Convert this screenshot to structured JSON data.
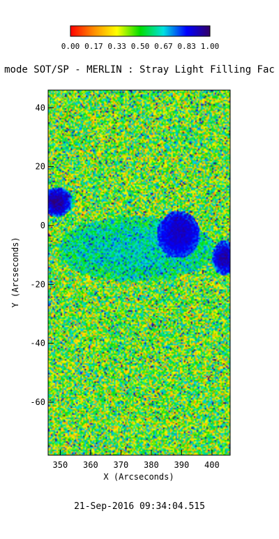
{
  "chart_data": {
    "type": "heatmap",
    "title": "mode SOT/SP - MERLIN : Stray Light Filling Fac",
    "xlabel": "X (Arcseconds)",
    "ylabel": "Y (Arcseconds)",
    "x_ticks": [
      "350",
      "360",
      "370",
      "380",
      "390",
      "400"
    ],
    "y_ticks": [
      "40",
      "20",
      "0",
      "-20",
      "-40",
      "-60"
    ],
    "xlim": [
      346,
      406
    ],
    "ylim": [
      -78,
      46
    ],
    "colorbar": {
      "range": [
        0.0,
        1.0
      ],
      "tick_labels": [
        "0.00",
        "0.17",
        "0.33",
        "0.50",
        "0.67",
        "0.83",
        "1.00"
      ],
      "colormap": [
        "#ff0000",
        "#ff8c00",
        "#ffff00",
        "#00dd00",
        "#00e0e0",
        "#0000ff",
        "#330066"
      ]
    },
    "features": [
      {
        "name": "large-dark-patch",
        "x": 389,
        "y": -3,
        "value": 0.97
      },
      {
        "name": "left-edge-patch",
        "x": 349,
        "y": 8,
        "value": 0.95
      },
      {
        "name": "right-edge-patch",
        "x": 404,
        "y": -11,
        "value": 0.93
      },
      {
        "name": "middle-blue-band",
        "x": 375,
        "y": -8,
        "value": 0.8
      }
    ],
    "background_value": 0.45
  },
  "footer": {
    "timestamp": "21-Sep-2016 09:34:04.515"
  }
}
